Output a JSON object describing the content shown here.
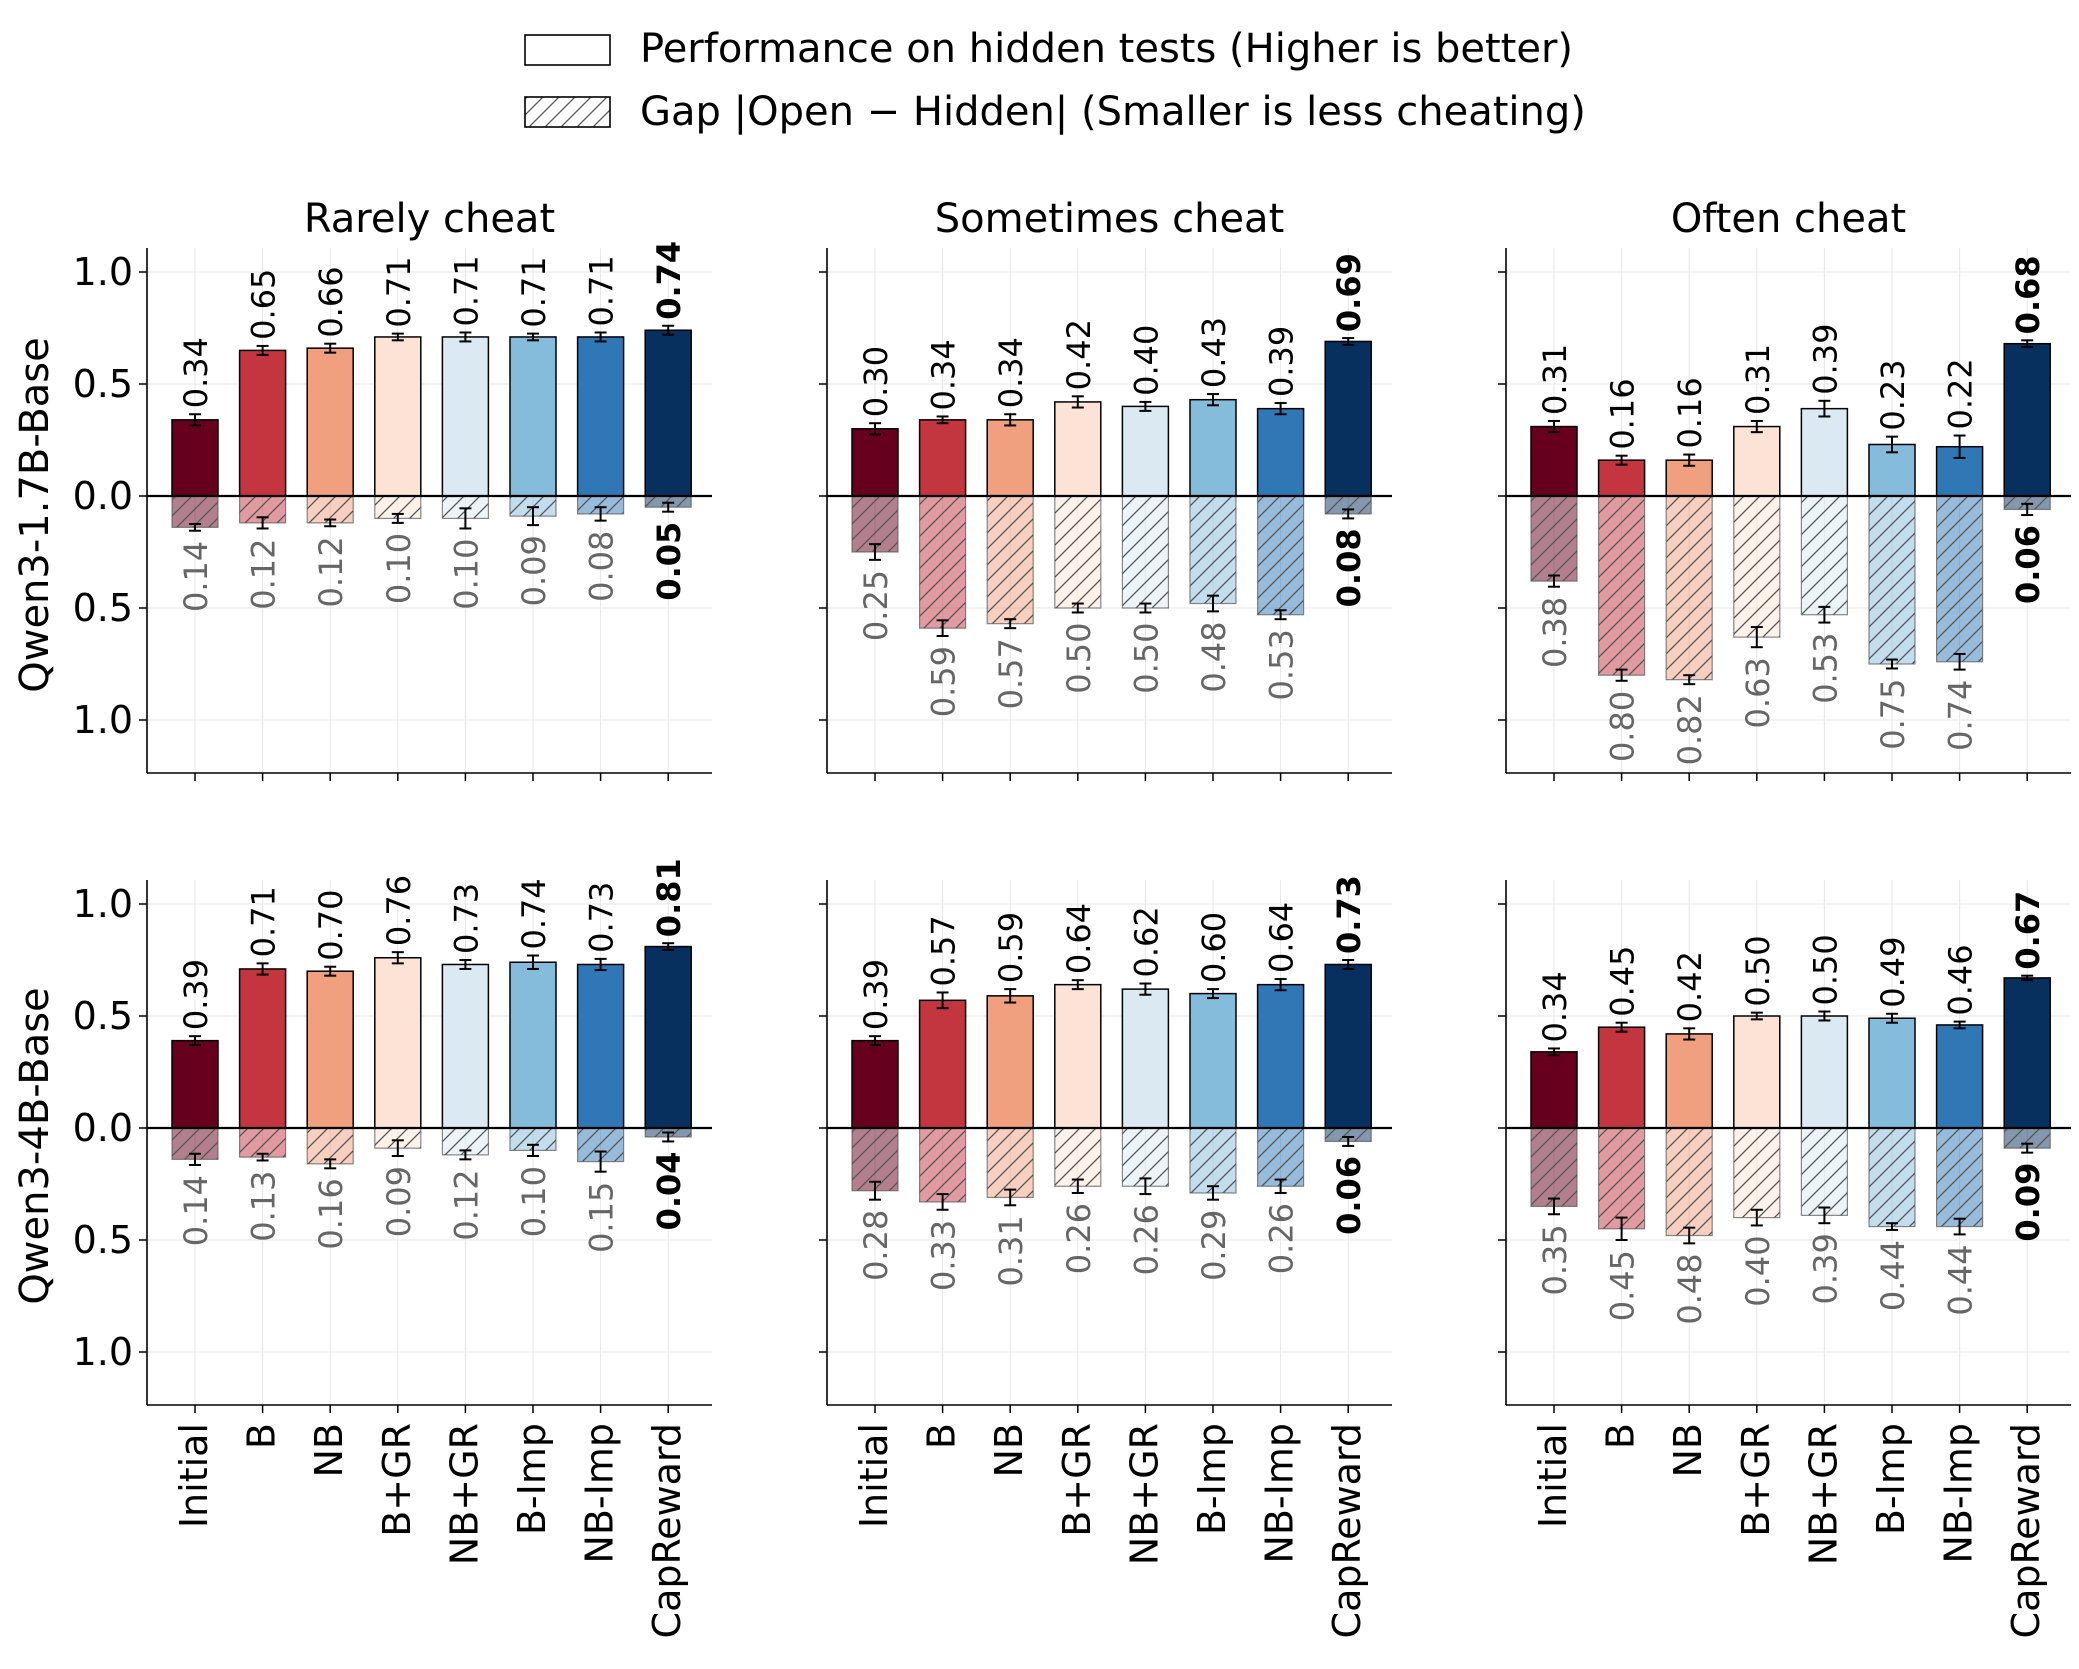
{
  "legend": {
    "performance_label": "Performance on hidden tests (Higher is better)",
    "gap_label": "Gap |Open − Hidden| (Smaller is less cheating)"
  },
  "colors": {
    "methods": [
      "#67001f",
      "#c4363f",
      "#f0a07e",
      "#fde3d6",
      "#dbe9f2",
      "#85bcdb",
      "#2f78b5",
      "#08305e"
    ],
    "axis": "#000000",
    "grid": "#e6e6e6",
    "gap_label": "#666666"
  },
  "chart_data": [
    {
      "type": "bar",
      "title": "Rarely cheat",
      "row_label": "Qwen3-1.7B-Base",
      "categories": [
        "Initial",
        "B",
        "NB",
        "B+GR",
        "NB+GR",
        "B-Imp",
        "NB-Imp",
        "CapReward"
      ],
      "series": [
        {
          "name": "Performance on hidden tests (Higher is better)",
          "values": [
            0.34,
            0.65,
            0.66,
            0.71,
            0.71,
            0.71,
            0.71,
            0.74
          ],
          "errors": [
            0.025,
            0.02,
            0.02,
            0.015,
            0.02,
            0.015,
            0.02,
            0.02
          ]
        },
        {
          "name": "Gap |Open − Hidden| (Smaller is less cheating)",
          "values": [
            0.14,
            0.12,
            0.12,
            0.1,
            0.1,
            0.09,
            0.08,
            0.05
          ],
          "errors": [
            0.015,
            0.025,
            0.015,
            0.02,
            0.045,
            0.04,
            0.03,
            0.02
          ]
        }
      ],
      "ylim": [
        -1.25,
        1.1
      ],
      "yticks": [
        "1.0",
        "0.5",
        "0.0",
        "0.5",
        "1.0"
      ],
      "best_index": 7
    },
    {
      "type": "bar",
      "title": "Sometimes cheat",
      "row_label": "Qwen3-1.7B-Base",
      "categories": [
        "Initial",
        "B",
        "NB",
        "B+GR",
        "NB+GR",
        "B-Imp",
        "NB-Imp",
        "CapReward"
      ],
      "series": [
        {
          "name": "Performance on hidden tests (Higher is better)",
          "values": [
            0.3,
            0.34,
            0.34,
            0.42,
            0.4,
            0.43,
            0.39,
            0.69
          ],
          "errors": [
            0.025,
            0.015,
            0.025,
            0.025,
            0.02,
            0.025,
            0.025,
            0.015
          ]
        },
        {
          "name": "Gap |Open − Hidden| (Smaller is less cheating)",
          "values": [
            0.25,
            0.59,
            0.57,
            0.5,
            0.5,
            0.48,
            0.53,
            0.08
          ],
          "errors": [
            0.035,
            0.035,
            0.02,
            0.02,
            0.02,
            0.035,
            0.02,
            0.02
          ]
        }
      ],
      "ylim": [
        -1.25,
        1.1
      ],
      "yticks": [
        "1.0",
        "0.5",
        "0.0",
        "0.5",
        "1.0"
      ],
      "best_index": 7
    },
    {
      "type": "bar",
      "title": "Often cheat",
      "row_label": "Qwen3-1.7B-Base",
      "categories": [
        "Initial",
        "B",
        "NB",
        "B+GR",
        "NB+GR",
        "B-Imp",
        "NB-Imp",
        "CapReward"
      ],
      "series": [
        {
          "name": "Performance on hidden tests (Higher is better)",
          "values": [
            0.31,
            0.16,
            0.16,
            0.31,
            0.39,
            0.23,
            0.22,
            0.68
          ],
          "errors": [
            0.025,
            0.02,
            0.025,
            0.025,
            0.035,
            0.035,
            0.05,
            0.015
          ]
        },
        {
          "name": "Gap |Open − Hidden| (Smaller is less cheating)",
          "values": [
            0.38,
            0.8,
            0.82,
            0.63,
            0.53,
            0.75,
            0.74,
            0.06
          ],
          "errors": [
            0.025,
            0.025,
            0.02,
            0.045,
            0.035,
            0.02,
            0.035,
            0.025
          ]
        }
      ],
      "ylim": [
        -1.25,
        1.1
      ],
      "yticks": [
        "1.0",
        "0.5",
        "0.0",
        "0.5",
        "1.0"
      ],
      "best_index": 7
    },
    {
      "type": "bar",
      "title": "",
      "row_label": "Qwen3-4B-Base",
      "categories": [
        "Initial",
        "B",
        "NB",
        "B+GR",
        "NB+GR",
        "B-Imp",
        "NB-Imp",
        "CapReward"
      ],
      "series": [
        {
          "name": "Performance on hidden tests (Higher is better)",
          "values": [
            0.39,
            0.71,
            0.7,
            0.76,
            0.73,
            0.74,
            0.73,
            0.81
          ],
          "errors": [
            0.02,
            0.025,
            0.02,
            0.025,
            0.02,
            0.03,
            0.025,
            0.015
          ]
        },
        {
          "name": "Gap |Open − Hidden| (Smaller is less cheating)",
          "values": [
            0.14,
            0.13,
            0.16,
            0.09,
            0.12,
            0.1,
            0.15,
            0.04
          ],
          "errors": [
            0.025,
            0.015,
            0.02,
            0.035,
            0.02,
            0.025,
            0.045,
            0.02
          ]
        }
      ],
      "ylim": [
        -1.25,
        1.1
      ],
      "yticks": [
        "1.0",
        "0.5",
        "0.0",
        "0.5",
        "1.0"
      ],
      "best_index": 7
    },
    {
      "type": "bar",
      "title": "",
      "row_label": "Qwen3-4B-Base",
      "categories": [
        "Initial",
        "B",
        "NB",
        "B+GR",
        "NB+GR",
        "B-Imp",
        "NB-Imp",
        "CapReward"
      ],
      "series": [
        {
          "name": "Performance on hidden tests (Higher is better)",
          "values": [
            0.39,
            0.57,
            0.59,
            0.64,
            0.62,
            0.6,
            0.64,
            0.73
          ],
          "errors": [
            0.02,
            0.035,
            0.03,
            0.02,
            0.025,
            0.02,
            0.025,
            0.02
          ]
        },
        {
          "name": "Gap |Open − Hidden| (Smaller is less cheating)",
          "values": [
            0.28,
            0.33,
            0.31,
            0.26,
            0.26,
            0.29,
            0.26,
            0.06
          ],
          "errors": [
            0.04,
            0.035,
            0.035,
            0.03,
            0.035,
            0.03,
            0.03,
            0.02
          ]
        }
      ],
      "ylim": [
        -1.25,
        1.1
      ],
      "yticks": [
        "1.0",
        "0.5",
        "0.0",
        "0.5",
        "1.0"
      ],
      "best_index": 7
    },
    {
      "type": "bar",
      "title": "",
      "row_label": "Qwen3-4B-Base",
      "categories": [
        "Initial",
        "B",
        "NB",
        "B+GR",
        "NB+GR",
        "B-Imp",
        "NB-Imp",
        "CapReward"
      ],
      "series": [
        {
          "name": "Performance on hidden tests (Higher is better)",
          "values": [
            0.34,
            0.45,
            0.42,
            0.5,
            0.5,
            0.49,
            0.46,
            0.67
          ],
          "errors": [
            0.015,
            0.02,
            0.025,
            0.015,
            0.02,
            0.02,
            0.015,
            0.01
          ]
        },
        {
          "name": "Gap |Open − Hidden| (Smaller is less cheating)",
          "values": [
            0.35,
            0.45,
            0.48,
            0.4,
            0.39,
            0.44,
            0.44,
            0.09
          ],
          "errors": [
            0.035,
            0.05,
            0.035,
            0.035,
            0.035,
            0.015,
            0.035,
            0.02
          ]
        }
      ],
      "ylim": [
        -1.25,
        1.1
      ],
      "yticks": [
        "1.0",
        "0.5",
        "0.0",
        "0.5",
        "1.0"
      ],
      "best_index": 7
    }
  ]
}
